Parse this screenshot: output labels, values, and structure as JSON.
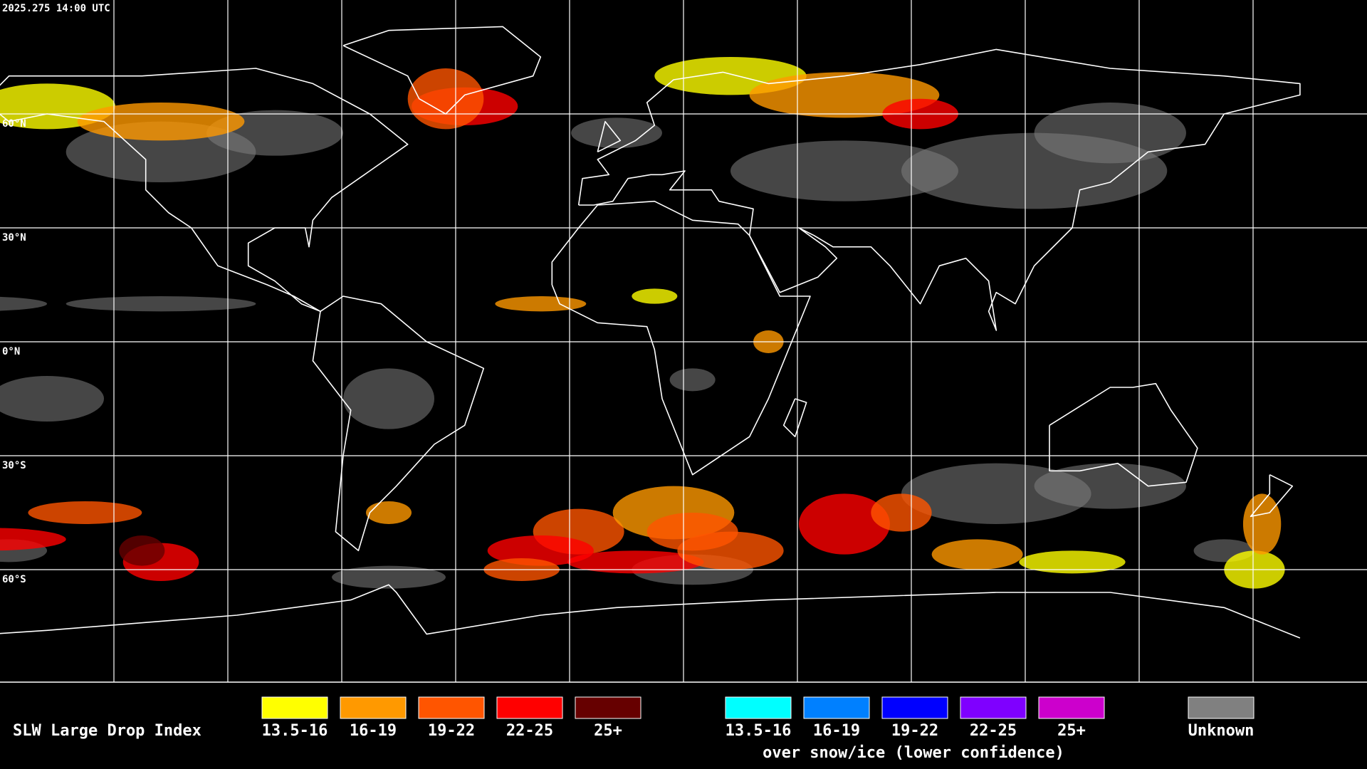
{
  "header": {
    "timestamp": "2025.275 14:00 UTC"
  },
  "map": {
    "latitude_labels": [
      "60°N",
      "30°N",
      "0°N",
      "30°S",
      "60°S"
    ]
  },
  "legend": {
    "title": "SLW Large Drop Index",
    "standard": [
      {
        "label": "13.5-16",
        "color": "#ffff00"
      },
      {
        "label": "16-19",
        "color": "#ff9900"
      },
      {
        "label": "19-22",
        "color": "#ff5500"
      },
      {
        "label": "22-25",
        "color": "#ff0000"
      },
      {
        "label": "25+",
        "color": "#660000"
      }
    ],
    "snow_ice": [
      {
        "label": "13.5-16",
        "color": "#00ffff"
      },
      {
        "label": "16-19",
        "color": "#0080ff"
      },
      {
        "label": "19-22",
        "color": "#0000ff"
      },
      {
        "label": "22-25",
        "color": "#7f00ff"
      },
      {
        "label": "25+",
        "color": "#cc00cc"
      }
    ],
    "snow_ice_caption": "over snow/ice (lower confidence)",
    "unknown": {
      "label": "Unknown",
      "color": "#808080"
    }
  }
}
